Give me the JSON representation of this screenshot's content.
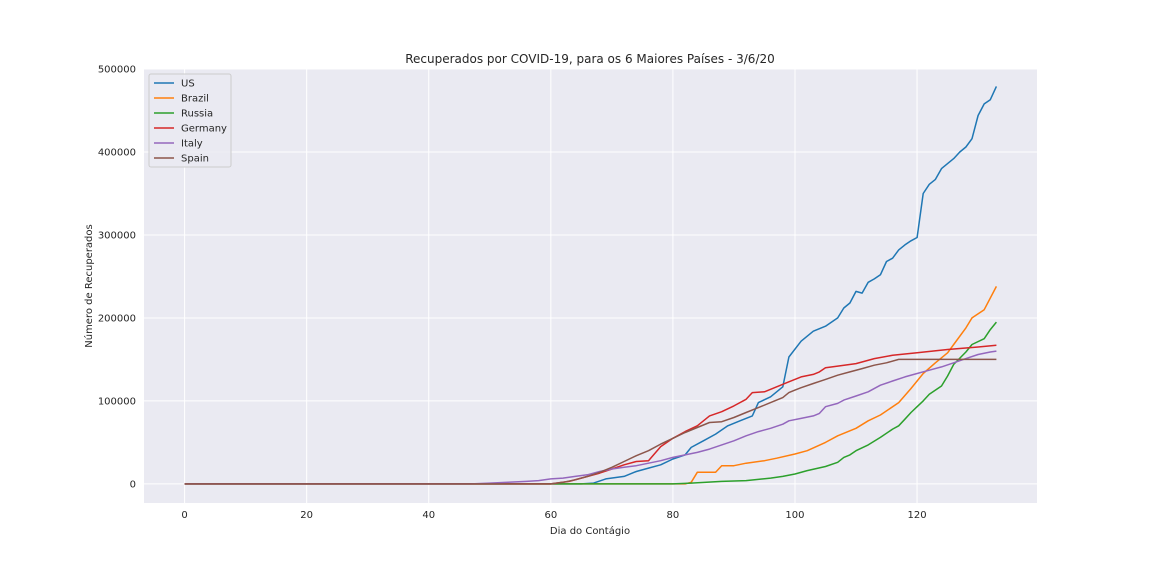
{
  "chart_data": {
    "type": "line",
    "title": "Recuperados por COVID-19, para os 6 Maiores Países - 3/6/20",
    "xlabel": "Dia do Contágio",
    "ylabel": "Número de Recuperados",
    "xlim": [
      -6.65,
      139.65
    ],
    "ylim": [
      -23000,
      500000
    ],
    "xticks": [
      "0",
      "20",
      "40",
      "60",
      "80",
      "100",
      "120"
    ],
    "yticks": [
      "0",
      "100000",
      "200000",
      "300000",
      "400000",
      "500000"
    ],
    "grid": true,
    "legend_position": "top-left",
    "series": [
      {
        "name": "US",
        "color": "#1f77b4",
        "points": [
          [
            0,
            0
          ],
          [
            65,
            0
          ],
          [
            67,
            1000
          ],
          [
            69,
            6000
          ],
          [
            72,
            9000
          ],
          [
            74,
            15000
          ],
          [
            76,
            19000
          ],
          [
            78,
            23000
          ],
          [
            80,
            30000
          ],
          [
            82,
            35000
          ],
          [
            83,
            44000
          ],
          [
            85,
            52000
          ],
          [
            87,
            60000
          ],
          [
            89,
            70000
          ],
          [
            91,
            76000
          ],
          [
            93,
            82000
          ],
          [
            94,
            98000
          ],
          [
            96,
            105000
          ],
          [
            98,
            117000
          ],
          [
            99,
            153000
          ],
          [
            101,
            172000
          ],
          [
            103,
            184000
          ],
          [
            105,
            190000
          ],
          [
            107,
            200000
          ],
          [
            108,
            212000
          ],
          [
            109,
            218000
          ],
          [
            110,
            232000
          ],
          [
            111,
            230000
          ],
          [
            112,
            243000
          ],
          [
            113,
            247000
          ],
          [
            114,
            252000
          ],
          [
            115,
            268000
          ],
          [
            116,
            272000
          ],
          [
            117,
            282000
          ],
          [
            118,
            288000
          ],
          [
            119,
            293000
          ],
          [
            120,
            297000
          ],
          [
            121,
            350000
          ],
          [
            122,
            361000
          ],
          [
            123,
            367000
          ],
          [
            124,
            380000
          ],
          [
            125,
            386000
          ],
          [
            126,
            392000
          ],
          [
            127,
            400000
          ],
          [
            128,
            406000
          ],
          [
            129,
            416000
          ],
          [
            130,
            444000
          ],
          [
            131,
            458000
          ],
          [
            132,
            463000
          ],
          [
            133,
            479000
          ]
        ]
      },
      {
        "name": "Brazil",
        "color": "#ff7f0e",
        "points": [
          [
            0,
            0
          ],
          [
            82,
            0
          ],
          [
            83,
            2000
          ],
          [
            84,
            14000
          ],
          [
            87,
            14000
          ],
          [
            88,
            22000
          ],
          [
            90,
            22000
          ],
          [
            92,
            25000
          ],
          [
            95,
            28000
          ],
          [
            97,
            31000
          ],
          [
            100,
            36000
          ],
          [
            102,
            40000
          ],
          [
            105,
            50000
          ],
          [
            107,
            58000
          ],
          [
            110,
            67000
          ],
          [
            112,
            76000
          ],
          [
            114,
            83000
          ],
          [
            117,
            98000
          ],
          [
            119,
            115000
          ],
          [
            121,
            133000
          ],
          [
            123,
            146000
          ],
          [
            125,
            158000
          ],
          [
            126,
            168000
          ],
          [
            128,
            188000
          ],
          [
            129,
            200000
          ],
          [
            131,
            210000
          ],
          [
            133,
            238000
          ]
        ]
      },
      {
        "name": "Russia",
        "color": "#2ca02c",
        "points": [
          [
            0,
            0
          ],
          [
            80,
            0
          ],
          [
            83,
            1000
          ],
          [
            88,
            3000
          ],
          [
            92,
            4000
          ],
          [
            96,
            7000
          ],
          [
            98,
            9000
          ],
          [
            100,
            12000
          ],
          [
            102,
            16000
          ],
          [
            105,
            21000
          ],
          [
            107,
            26000
          ],
          [
            108,
            32000
          ],
          [
            109,
            35000
          ],
          [
            110,
            40000
          ],
          [
            112,
            47000
          ],
          [
            114,
            56000
          ],
          [
            116,
            66000
          ],
          [
            117,
            70000
          ],
          [
            118,
            78000
          ],
          [
            119,
            86000
          ],
          [
            120,
            93000
          ],
          [
            121,
            100000
          ],
          [
            122,
            108000
          ],
          [
            124,
            118000
          ],
          [
            125,
            130000
          ],
          [
            126,
            144000
          ],
          [
            128,
            159000
          ],
          [
            129,
            168000
          ],
          [
            131,
            175000
          ],
          [
            132,
            186000
          ],
          [
            133,
            195000
          ]
        ]
      },
      {
        "name": "Germany",
        "color": "#d62728",
        "points": [
          [
            0,
            0
          ],
          [
            60,
            0
          ],
          [
            63,
            3000
          ],
          [
            65,
            7000
          ],
          [
            68,
            13000
          ],
          [
            70,
            18000
          ],
          [
            72,
            23000
          ],
          [
            74,
            27000
          ],
          [
            76,
            28000
          ],
          [
            78,
            45000
          ],
          [
            80,
            55000
          ],
          [
            82,
            63000
          ],
          [
            84,
            70000
          ],
          [
            86,
            82000
          ],
          [
            88,
            87000
          ],
          [
            90,
            94000
          ],
          [
            92,
            102000
          ],
          [
            93,
            110000
          ],
          [
            95,
            111000
          ],
          [
            97,
            117000
          ],
          [
            99,
            123000
          ],
          [
            101,
            129000
          ],
          [
            103,
            132000
          ],
          [
            104,
            135000
          ],
          [
            105,
            140000
          ],
          [
            107,
            142000
          ],
          [
            110,
            145000
          ],
          [
            113,
            151000
          ],
          [
            116,
            155000
          ],
          [
            120,
            158000
          ],
          [
            125,
            162000
          ],
          [
            130,
            165000
          ],
          [
            133,
            167000
          ]
        ]
      },
      {
        "name": "Italy",
        "color": "#9467bd",
        "points": [
          [
            0,
            0
          ],
          [
            47,
            0
          ],
          [
            50,
            1000
          ],
          [
            53,
            2000
          ],
          [
            56,
            3000
          ],
          [
            58,
            4000
          ],
          [
            60,
            6000
          ],
          [
            62,
            7000
          ],
          [
            64,
            9000
          ],
          [
            66,
            11000
          ],
          [
            68,
            15000
          ],
          [
            70,
            18000
          ],
          [
            72,
            20000
          ],
          [
            74,
            22000
          ],
          [
            76,
            25000
          ],
          [
            78,
            28000
          ],
          [
            80,
            32000
          ],
          [
            82,
            35000
          ],
          [
            84,
            38000
          ],
          [
            86,
            42000
          ],
          [
            88,
            47000
          ],
          [
            90,
            52000
          ],
          [
            92,
            58000
          ],
          [
            94,
            63000
          ],
          [
            96,
            67000
          ],
          [
            98,
            72000
          ],
          [
            99,
            76000
          ],
          [
            101,
            79000
          ],
          [
            103,
            82000
          ],
          [
            104,
            85000
          ],
          [
            105,
            93000
          ],
          [
            107,
            97000
          ],
          [
            108,
            101000
          ],
          [
            110,
            106000
          ],
          [
            112,
            111000
          ],
          [
            114,
            119000
          ],
          [
            116,
            124000
          ],
          [
            118,
            129000
          ],
          [
            120,
            133000
          ],
          [
            122,
            137000
          ],
          [
            124,
            141000
          ],
          [
            126,
            146000
          ],
          [
            128,
            151000
          ],
          [
            130,
            156000
          ],
          [
            132,
            159000
          ],
          [
            133,
            160000
          ]
        ]
      },
      {
        "name": "Spain",
        "color": "#8c564b",
        "points": [
          [
            0,
            0
          ],
          [
            60,
            0
          ],
          [
            62,
            2000
          ],
          [
            64,
            5000
          ],
          [
            66,
            9000
          ],
          [
            68,
            14000
          ],
          [
            70,
            20000
          ],
          [
            72,
            27000
          ],
          [
            74,
            34000
          ],
          [
            76,
            40000
          ],
          [
            78,
            48000
          ],
          [
            80,
            55000
          ],
          [
            82,
            62000
          ],
          [
            84,
            68000
          ],
          [
            86,
            74000
          ],
          [
            88,
            75000
          ],
          [
            90,
            80000
          ],
          [
            92,
            86000
          ],
          [
            94,
            92000
          ],
          [
            96,
            98000
          ],
          [
            98,
            104000
          ],
          [
            99,
            110000
          ],
          [
            100,
            113000
          ],
          [
            101,
            116000
          ],
          [
            103,
            121000
          ],
          [
            105,
            126000
          ],
          [
            107,
            131000
          ],
          [
            109,
            135000
          ],
          [
            111,
            139000
          ],
          [
            113,
            143000
          ],
          [
            115,
            146000
          ],
          [
            117,
            150000
          ],
          [
            120,
            150000
          ],
          [
            133,
            150000
          ]
        ]
      }
    ]
  }
}
